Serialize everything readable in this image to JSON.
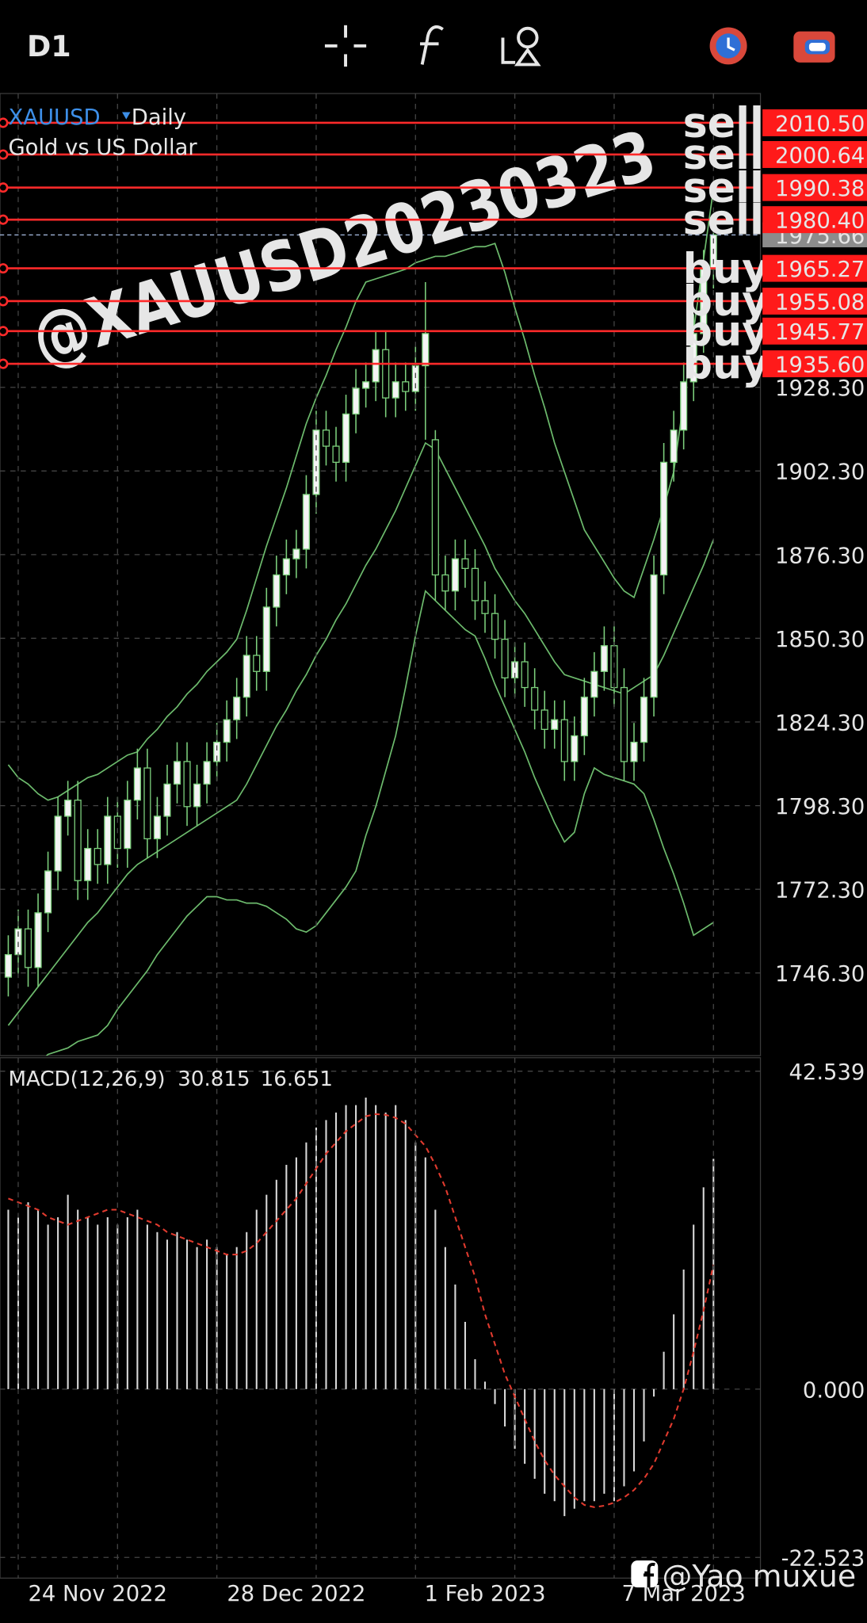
{
  "header": {
    "timeframe": "D1"
  },
  "chart_data": [
    {
      "type": "candlestick",
      "symbol": "XAUUSD",
      "period": "Daily",
      "title": "Gold vs US Dollar",
      "categories": [
        null,
        null,
        null,
        null,
        null,
        null,
        null,
        null,
        null,
        "24 Nov 2022",
        null,
        null,
        null,
        null,
        null,
        null,
        null,
        null,
        null,
        null,
        null,
        null,
        null,
        null,
        null,
        null,
        null,
        null,
        null,
        "28 Dec 2022",
        null,
        null,
        null,
        null,
        null,
        null,
        null,
        null,
        null,
        null,
        null,
        null,
        null,
        null,
        null,
        null,
        null,
        null,
        "1 Feb 2023",
        null,
        null,
        null,
        null,
        null,
        null,
        null,
        null,
        null,
        null,
        null,
        null,
        null,
        null,
        null,
        null,
        null,
        null,
        null,
        "7 Mar 2023",
        null,
        null,
        null
      ],
      "open": [
        1745,
        1752,
        1760,
        1748,
        1765,
        1778,
        1795,
        1800,
        1775,
        1785,
        1780,
        1795,
        1785,
        1800,
        1810,
        1788,
        1795,
        1805,
        1812,
        1798,
        1805,
        1812,
        1818,
        1825,
        1832,
        1845,
        1840,
        1860,
        1870,
        1875,
        1878,
        1895,
        1915,
        1910,
        1905,
        1920,
        1928,
        1930,
        1940,
        1925,
        1930,
        1927,
        1935,
        1912,
        1870,
        1865,
        1875,
        1872,
        1862,
        1858,
        1850,
        1838,
        1843,
        1835,
        1828,
        1822,
        1825,
        1812,
        1820,
        1832,
        1840,
        1848,
        1835,
        1812,
        1818,
        1832,
        1870,
        1905,
        1915,
        1930,
        1945,
        1965
      ],
      "high": [
        1758,
        1766,
        1766,
        1771,
        1784,
        1801,
        1806,
        1806,
        1791,
        1791,
        1801,
        1801,
        1806,
        1816,
        1816,
        1801,
        1811,
        1818,
        1818,
        1811,
        1818,
        1824,
        1831,
        1838,
        1851,
        1851,
        1866,
        1876,
        1881,
        1884,
        1901,
        1921,
        1921,
        1916,
        1926,
        1934,
        1936,
        1946,
        1946,
        1936,
        1936,
        1941,
        1961,
        1915,
        1876,
        1881,
        1881,
        1878,
        1868,
        1864,
        1856,
        1849,
        1849,
        1841,
        1834,
        1831,
        1831,
        1826,
        1838,
        1846,
        1854,
        1854,
        1841,
        1824,
        1838,
        1876,
        1911,
        1921,
        1936,
        1951,
        1971,
        1981
      ],
      "low": [
        1739,
        1746,
        1742,
        1742,
        1759,
        1772,
        1789,
        1769,
        1769,
        1774,
        1774,
        1779,
        1779,
        1794,
        1782,
        1782,
        1789,
        1799,
        1792,
        1792,
        1799,
        1806,
        1812,
        1819,
        1826,
        1834,
        1834,
        1854,
        1864,
        1869,
        1872,
        1889,
        1904,
        1899,
        1899,
        1914,
        1922,
        1924,
        1919,
        1919,
        1921,
        1921,
        1912,
        1862,
        1859,
        1859,
        1866,
        1856,
        1852,
        1844,
        1832,
        1832,
        1829,
        1822,
        1816,
        1816,
        1806,
        1806,
        1814,
        1826,
        1834,
        1829,
        1806,
        1806,
        1812,
        1826,
        1864,
        1899,
        1909,
        1924,
        1939,
        1959
      ],
      "close": [
        1752,
        1760,
        1748,
        1765,
        1778,
        1795,
        1800,
        1775,
        1785,
        1780,
        1795,
        1785,
        1800,
        1810,
        1788,
        1795,
        1805,
        1812,
        1798,
        1805,
        1812,
        1818,
        1825,
        1832,
        1845,
        1840,
        1860,
        1870,
        1875,
        1878,
        1895,
        1915,
        1910,
        1905,
        1920,
        1928,
        1930,
        1940,
        1925,
        1930,
        1927,
        1935,
        1945,
        1870,
        1865,
        1875,
        1872,
        1862,
        1858,
        1850,
        1838,
        1843,
        1835,
        1828,
        1822,
        1825,
        1812,
        1820,
        1832,
        1840,
        1848,
        1835,
        1812,
        1818,
        1832,
        1870,
        1905,
        1915,
        1930,
        1945,
        1965,
        1975.66
      ],
      "bands": {
        "color": "#6dbb6d",
        "upper": [
          1811,
          1807,
          1805,
          1802,
          1800,
          1801,
          1803,
          1805,
          1807,
          1808,
          1810,
          1812,
          1814,
          1815,
          1819,
          1822,
          1826,
          1829,
          1833,
          1836,
          1840,
          1843,
          1846,
          1850,
          1859,
          1869,
          1879,
          1888,
          1897,
          1907,
          1917,
          1925,
          1932,
          1940,
          1947,
          1955,
          1961,
          1962,
          1963,
          1964,
          1965,
          1967,
          1968,
          1969,
          1969,
          1970,
          1971,
          1972,
          1972,
          1973,
          1964,
          1953,
          1943,
          1932,
          1922,
          1911,
          1902,
          1893,
          1884,
          1879,
          1874,
          1869,
          1865,
          1863,
          1872,
          1881,
          1891,
          1902,
          1924,
          1946,
          1968,
          1990
        ],
        "middle": [
          1730,
          1734,
          1738,
          1742,
          1746,
          1750,
          1754,
          1758,
          1762,
          1765,
          1769,
          1773,
          1777,
          1780,
          1782,
          1784,
          1786,
          1788,
          1790,
          1792,
          1794,
          1796,
          1798,
          1800,
          1805,
          1811,
          1817,
          1823,
          1828,
          1834,
          1839,
          1845,
          1850,
          1856,
          1861,
          1867,
          1873,
          1878,
          1884,
          1890,
          1897,
          1904,
          1911,
          1909,
          1903,
          1897,
          1891,
          1885,
          1879,
          1872,
          1867,
          1862,
          1858,
          1853,
          1848,
          1843,
          1839,
          1838,
          1837,
          1836,
          1835,
          1834,
          1833,
          1835,
          1837,
          1839,
          1845,
          1852,
          1859,
          1866,
          1873,
          1881
        ],
        "lower": [
          1707,
          1711,
          1714,
          1718,
          1721,
          1722,
          1723,
          1725,
          1726,
          1727,
          1730,
          1735,
          1739,
          1743,
          1747,
          1752,
          1756,
          1760,
          1764,
          1767,
          1770,
          1770,
          1769,
          1769,
          1768,
          1768,
          1767,
          1765,
          1763,
          1760,
          1759,
          1761,
          1765,
          1769,
          1773,
          1778,
          1789,
          1798,
          1809,
          1820,
          1835,
          1851,
          1865,
          1862,
          1859,
          1856,
          1853,
          1851,
          1844,
          1836,
          1829,
          1822,
          1815,
          1807,
          1800,
          1793,
          1787,
          1790,
          1802,
          1810,
          1808,
          1807,
          1806,
          1805,
          1802,
          1794,
          1785,
          1777,
          1768,
          1758,
          1760,
          1762
        ]
      },
      "candle_color": "#7ccf7c",
      "ylim": [
        1720.6,
        2019.6
      ],
      "yticks": [
        {
          "value": 1928.3,
          "label": "1928.30"
        },
        {
          "value": 1902.3,
          "label": "1902.30"
        },
        {
          "value": 1876.3,
          "label": "1876.30"
        },
        {
          "value": 1850.3,
          "label": "1850.30"
        },
        {
          "value": 1824.3,
          "label": "1824.30"
        },
        {
          "value": 1798.3,
          "label": "1798.30"
        },
        {
          "value": 1772.3,
          "label": "1772.30"
        },
        {
          "value": 1746.3,
          "label": "1746.30"
        }
      ],
      "grid": true,
      "bid": {
        "value": 1975.66,
        "label": "1975.66"
      },
      "levels": [
        {
          "value": 2010.5,
          "label": "2010.50",
          "signal": "sell",
          "color": "#f6f23a"
        },
        {
          "value": 2000.64,
          "label": "2000.64",
          "signal": "sell",
          "color": "#4fe36c"
        },
        {
          "value": 1990.38,
          "label": "1990.38",
          "signal": "sell",
          "color": "#e23fc9"
        },
        {
          "value": 1980.4,
          "label": "1980.40",
          "signal": "sell",
          "color": "#4040e6"
        },
        {
          "value": 1965.27,
          "label": "1965.27",
          "signal": "buy",
          "color": "#4040e6"
        },
        {
          "value": 1955.08,
          "label": "1955.08",
          "signal": "buy",
          "color": "#e23fc9"
        },
        {
          "value": 1945.77,
          "label": "1945.77",
          "signal": "buy",
          "color": "#4fe36c"
        },
        {
          "value": 1935.6,
          "label": "1935.60",
          "signal": "buy",
          "color": "#f6f23a"
        }
      ],
      "annotation": "@XAUUSD20230323"
    },
    {
      "type": "macd",
      "title": "MACD(12,26,9)",
      "values": [
        24,
        23,
        25,
        24,
        22,
        23,
        26,
        24,
        23,
        22,
        23,
        22,
        23,
        24,
        22,
        21,
        20,
        21,
        20,
        19,
        20,
        19,
        18,
        19,
        21,
        24,
        26,
        28,
        30,
        31,
        33,
        35,
        36,
        37,
        38,
        38,
        39,
        38,
        37,
        38,
        36,
        33,
        31,
        24,
        19,
        14,
        9,
        4,
        1,
        -2,
        -5,
        -8,
        -10,
        -12,
        -14,
        -15,
        -17,
        -16,
        -15,
        -15,
        -14,
        -15,
        -13,
        -11,
        -7,
        -1,
        5,
        10,
        16,
        22,
        27,
        30.815
      ],
      "signal": [
        25.5,
        25,
        24.5,
        24,
        23,
        22.5,
        22,
        22.5,
        23,
        23.5,
        24,
        24,
        23.5,
        23,
        22.5,
        22,
        21,
        20.5,
        20,
        19.5,
        19,
        18.5,
        18,
        18,
        18.5,
        19.5,
        21,
        22.5,
        24,
        25.5,
        27.5,
        29.5,
        31.5,
        33,
        34.5,
        35.5,
        36.5,
        36.8,
        36.7,
        36.3,
        35.5,
        34,
        32.5,
        30,
        27,
        23,
        19,
        15,
        10,
        6,
        2,
        -1,
        -4,
        -7,
        -9.5,
        -11.5,
        -13,
        -14.5,
        -15.5,
        -15.8,
        -15.6,
        -15.2,
        -14.5,
        -13.5,
        -12,
        -10,
        -7,
        -4,
        0,
        5,
        10.5,
        16.651
      ],
      "color": "#d8d8d8",
      "signal_color": "#e03a2e",
      "ylim": [
        -22.523,
        42.539
      ],
      "yticks": [
        42.539,
        {
          "value": 0,
          "label": "0.000"
        },
        -22.523
      ]
    }
  ],
  "watermark": "@Yao muxue"
}
